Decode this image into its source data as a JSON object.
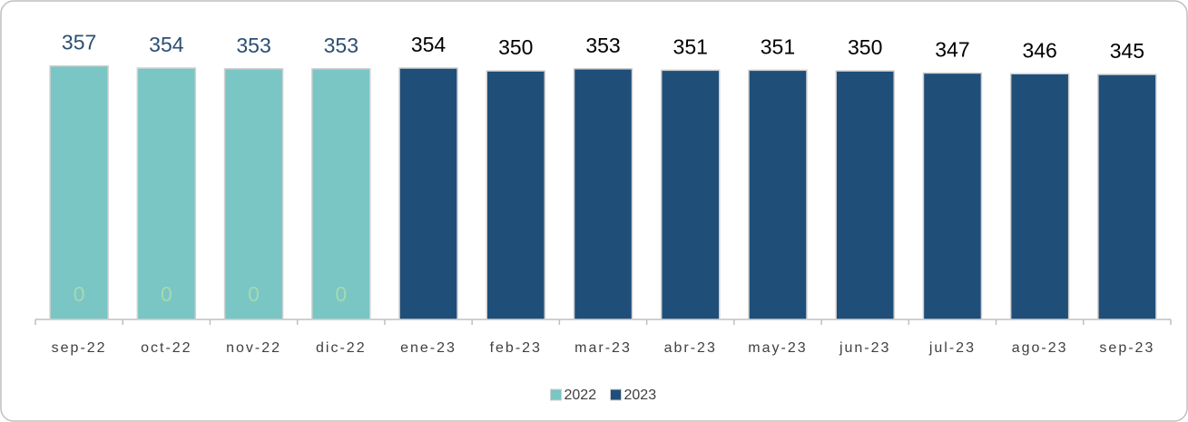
{
  "chart_data": {
    "type": "bar",
    "categories": [
      "sep-22",
      "oct-22",
      "nov-22",
      "dic-22",
      "ene-23",
      "feb-23",
      "mar-23",
      "abr-23",
      "may-23",
      "jun-23",
      "jul-23",
      "ago-23",
      "sep-23"
    ],
    "series": [
      {
        "name": "2022",
        "color": "#79c6c4",
        "label_color": "#2b4f72",
        "values": [
          357,
          354,
          353,
          353,
          null,
          null,
          null,
          null,
          null,
          null,
          null,
          null,
          null
        ]
      },
      {
        "name": "2023",
        "color": "#1f4e79",
        "label_color": "#000000",
        "values": [
          0,
          0,
          0,
          0,
          354,
          350,
          353,
          351,
          351,
          350,
          347,
          346,
          345
        ]
      }
    ],
    "ylim": [
      0,
      400
    ],
    "legend": "bottom"
  }
}
